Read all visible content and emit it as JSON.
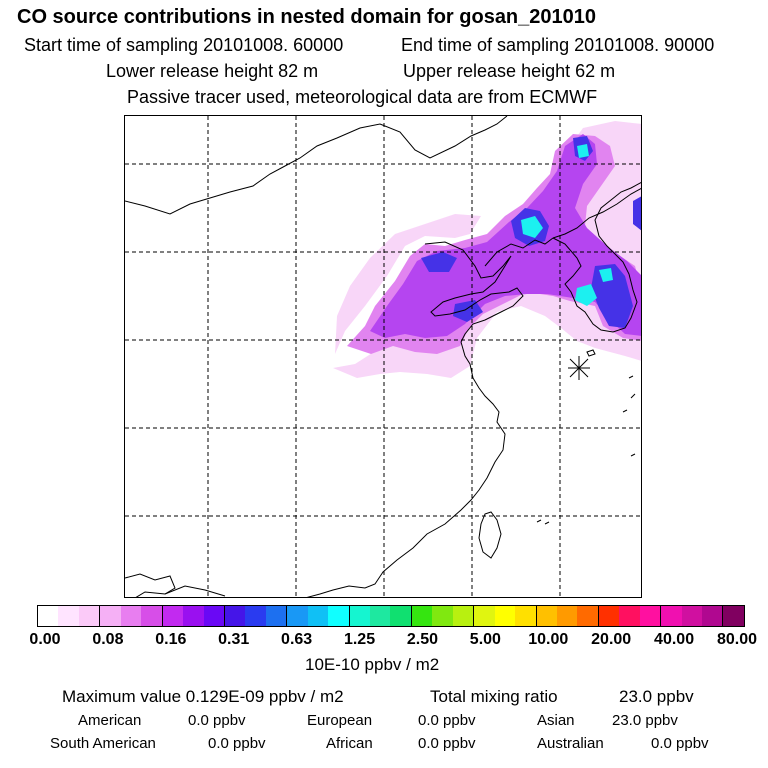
{
  "header": {
    "title": "CO  source contributions in nested domain for gosan_201010",
    "start_time": "Start time of sampling 20101008. 60000",
    "end_time": "End time of sampling 20101008. 90000",
    "lower_release": "Lower release height   82 m",
    "upper_release": "Upper release height   62 m",
    "tracer_note": "Passive tracer used, meteorological data are from ECMWF"
  },
  "legend": {
    "colors": [
      "#ffffff",
      "#ffe4ff",
      "#fbcaf8",
      "#f5b0f5",
      "#e87ef0",
      "#d74ee8",
      "#c22af0",
      "#9a10f0",
      "#6a08f5",
      "#4515e8",
      "#2a3bf0",
      "#1d70f0",
      "#1998f5",
      "#10c0f5",
      "#10ffff",
      "#15f5d0",
      "#1ee8a0",
      "#10e070",
      "#35e510",
      "#80e810",
      "#b8f010",
      "#e0f510",
      "#ffff00",
      "#ffe000",
      "#ffc000",
      "#ff9a00",
      "#ff6a00",
      "#ff3000",
      "#ff1060",
      "#ff10a0",
      "#f010b0",
      "#d010a0",
      "#b00890",
      "#800060"
    ],
    "ticks": [
      "0.00",
      "0.08",
      "0.16",
      "0.31",
      "0.63",
      "1.25",
      "2.50",
      "5.00",
      "10.00",
      "20.00",
      "40.00",
      "80.00"
    ],
    "unit": "10E-10 ppbv / m2"
  },
  "stats": {
    "maximum": "Maximum value  0.129E-09 ppbv / m2",
    "total": "Total mixing ratio",
    "total_value": "23.0 ppbv",
    "american_label": "American",
    "american_value": "0.0 ppbv",
    "european_label": "European",
    "european_value": "0.0 ppbv",
    "asian_label": "Asian",
    "asian_value": "23.0 ppbv",
    "south_american_label": "South American",
    "south_american_value": "0.0 ppbv",
    "african_label": "African",
    "african_value": "0.0 ppbv",
    "australian_label": "Australian",
    "australian_value": "0.0 ppbv"
  },
  "map": {
    "receptor_symbol": "gosan-receptor",
    "plume_colors": {
      "light": "#f8d4f8",
      "mid": "#e07ef0",
      "violet": "#b23cf0",
      "blue": "#3c28e6",
      "cyan": "#10f0f0"
    }
  }
}
